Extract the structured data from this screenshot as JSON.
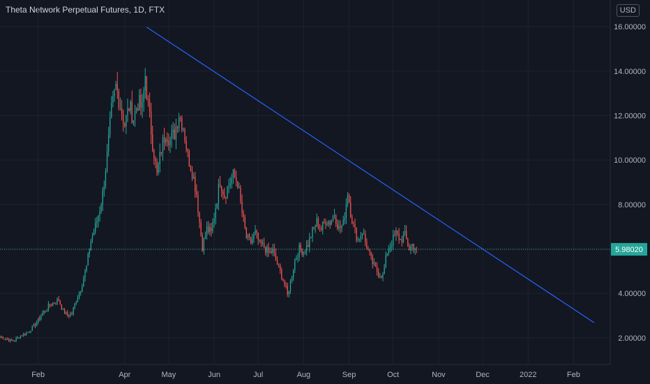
{
  "header": {
    "title": "Theta Network Perpetual Futures, 1D, FTX",
    "currency": "USD"
  },
  "colors": {
    "background": "#131722",
    "grid": "#1e222d",
    "up": "#26a69a",
    "down": "#ef5350",
    "trendline": "#2962ff",
    "last_price_line": "#26a69a"
  },
  "chart_data": {
    "type": "candlestick",
    "title": "Theta Network Perpetual Futures, 1D, FTX",
    "ylabel": "USD",
    "ylim": [
      0.8,
      17.2
    ],
    "xlim": [
      "2021-01-06",
      "2022-02-26"
    ],
    "y_ticks": [
      {
        "value": 2,
        "label": "2.00000"
      },
      {
        "value": 4,
        "label": "4.00000"
      },
      {
        "value": 6,
        "label": ""
      },
      {
        "value": 8,
        "label": "8.00000"
      },
      {
        "value": 10,
        "label": "10.00000"
      },
      {
        "value": 12,
        "label": "12.00000"
      },
      {
        "value": 14,
        "label": "14.00000"
      },
      {
        "value": 16,
        "label": "16.00000"
      }
    ],
    "x_ticks": [
      {
        "date": "2021-02-01",
        "label": "Feb"
      },
      {
        "date": "2021-04-01",
        "label": "Apr"
      },
      {
        "date": "2021-05-01",
        "label": "May"
      },
      {
        "date": "2021-06-01",
        "label": "Jun"
      },
      {
        "date": "2021-07-01",
        "label": "Jul"
      },
      {
        "date": "2021-08-01",
        "label": "Aug"
      },
      {
        "date": "2021-09-01",
        "label": "Sep"
      },
      {
        "date": "2021-10-01",
        "label": "Oct"
      },
      {
        "date": "2021-11-01",
        "label": "Nov"
      },
      {
        "date": "2021-12-01",
        "label": "Dec"
      },
      {
        "date": "2022-01-01",
        "label": "2022"
      },
      {
        "date": "2022-02-01",
        "label": "Feb"
      }
    ],
    "last_price": {
      "value": 5.9802,
      "label": "5.98020"
    },
    "trendline": {
      "start": {
        "date": "2021-04-16",
        "value": 15.98
      },
      "end": {
        "date": "2022-02-15",
        "value": 2.68
      }
    },
    "path": {
      "start_date": "2021-01-06",
      "interval_days": 1,
      "series": [
        [
          "2021-01-06",
          2.05
        ],
        [
          "2021-01-10",
          1.95
        ],
        [
          "2021-01-15",
          1.85
        ],
        [
          "2021-01-20",
          2.1
        ],
        [
          "2021-01-25",
          2.25
        ],
        [
          "2021-01-30",
          2.6
        ],
        [
          "2021-02-04",
          3.1
        ],
        [
          "2021-02-08",
          3.4
        ],
        [
          "2021-02-12",
          3.6
        ],
        [
          "2021-02-15",
          3.7
        ],
        [
          "2021-02-18",
          3.2
        ],
        [
          "2021-02-21",
          3.0
        ],
        [
          "2021-02-24",
          3.1
        ],
        [
          "2021-02-27",
          3.7
        ],
        [
          "2021-03-02",
          4.2
        ],
        [
          "2021-03-06",
          5.2
        ],
        [
          "2021-03-09",
          6.4
        ],
        [
          "2021-03-12",
          7.0
        ],
        [
          "2021-03-15",
          7.8
        ],
        [
          "2021-03-17",
          8.5
        ],
        [
          "2021-03-20",
          10.2
        ],
        [
          "2021-03-23",
          12.2
        ],
        [
          "2021-03-26",
          13.3
        ],
        [
          "2021-03-29",
          12.5
        ],
        [
          "2021-04-01",
          11.6
        ],
        [
          "2021-04-04",
          12.4
        ],
        [
          "2021-04-07",
          11.9
        ],
        [
          "2021-04-10",
          12.6
        ],
        [
          "2021-04-13",
          12.3
        ],
        [
          "2021-04-15",
          13.8
        ],
        [
          "2021-04-17",
          12.4
        ],
        [
          "2021-04-20",
          10.8
        ],
        [
          "2021-04-23",
          9.3
        ],
        [
          "2021-04-26",
          10.5
        ],
        [
          "2021-04-29",
          11.3
        ],
        [
          "2021-05-02",
          10.9
        ],
        [
          "2021-05-05",
          11.2
        ],
        [
          "2021-05-08",
          12.1
        ],
        [
          "2021-05-11",
          11.5
        ],
        [
          "2021-05-14",
          10.2
        ],
        [
          "2021-05-17",
          9.5
        ],
        [
          "2021-05-20",
          8.5
        ],
        [
          "2021-05-22",
          7.2
        ],
        [
          "2021-05-24",
          6.1
        ],
        [
          "2021-05-27",
          6.9
        ],
        [
          "2021-05-30",
          6.7
        ],
        [
          "2021-06-02",
          7.9
        ],
        [
          "2021-06-05",
          9.1
        ],
        [
          "2021-06-08",
          8.4
        ],
        [
          "2021-06-11",
          8.9
        ],
        [
          "2021-06-14",
          9.3
        ],
        [
          "2021-06-17",
          9.0
        ],
        [
          "2021-06-20",
          7.6
        ],
        [
          "2021-06-23",
          6.5
        ],
        [
          "2021-06-26",
          6.3
        ],
        [
          "2021-06-29",
          6.7
        ],
        [
          "2021-07-02",
          6.2
        ],
        [
          "2021-07-05",
          6.1
        ],
        [
          "2021-07-08",
          5.8
        ],
        [
          "2021-07-11",
          5.9
        ],
        [
          "2021-07-14",
          5.3
        ],
        [
          "2021-07-17",
          4.8
        ],
        [
          "2021-07-20",
          4.2
        ],
        [
          "2021-07-21",
          3.9
        ],
        [
          "2021-07-23",
          4.5
        ],
        [
          "2021-07-26",
          5.5
        ],
        [
          "2021-07-29",
          6.0
        ],
        [
          "2021-08-01",
          5.9
        ],
        [
          "2021-08-04",
          6.2
        ],
        [
          "2021-08-07",
          6.8
        ],
        [
          "2021-08-10",
          7.2
        ],
        [
          "2021-08-13",
          6.9
        ],
        [
          "2021-08-16",
          7.3
        ],
        [
          "2021-08-19",
          7.2
        ],
        [
          "2021-08-22",
          7.6
        ],
        [
          "2021-08-25",
          6.9
        ],
        [
          "2021-08-28",
          7.1
        ],
        [
          "2021-08-31",
          8.6
        ],
        [
          "2021-09-02",
          7.7
        ],
        [
          "2021-09-04",
          7.0
        ],
        [
          "2021-09-07",
          6.4
        ],
        [
          "2021-09-10",
          6.8
        ],
        [
          "2021-09-13",
          6.1
        ],
        [
          "2021-09-16",
          5.5
        ],
        [
          "2021-09-19",
          5.1
        ],
        [
          "2021-09-21",
          4.9
        ],
        [
          "2021-09-24",
          4.8
        ],
        [
          "2021-09-27",
          5.9
        ],
        [
          "2021-09-30",
          6.3
        ],
        [
          "2021-10-03",
          6.7
        ],
        [
          "2021-10-06",
          6.4
        ],
        [
          "2021-10-09",
          6.6
        ],
        [
          "2021-10-12",
          6.0
        ],
        [
          "2021-10-14",
          6.2
        ],
        [
          "2021-10-17",
          5.98
        ]
      ]
    }
  }
}
